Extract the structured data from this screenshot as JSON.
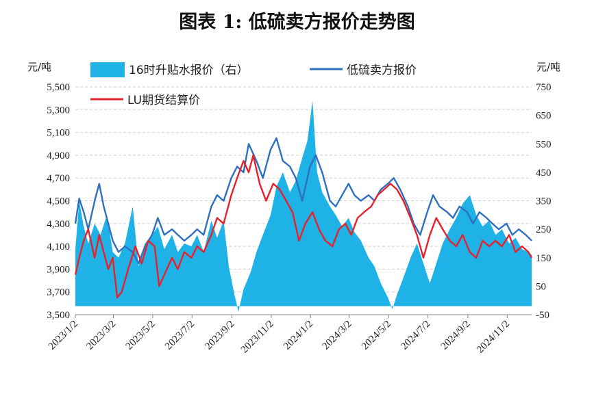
{
  "title": "图表 1:  低硫卖方报价走势图",
  "chart_data": {
    "type": "line",
    "left_unit": "元/吨",
    "right_unit": "元/吨",
    "left_axis": {
      "min": 3500,
      "max": 5500,
      "ticks": [
        3500,
        3700,
        3900,
        4100,
        4300,
        4500,
        4700,
        4900,
        5100,
        5300,
        5500
      ]
    },
    "right_axis": {
      "min": -50,
      "max": 750,
      "ticks": [
        -50,
        50,
        150,
        250,
        350,
        450,
        550,
        650,
        750
      ]
    },
    "x_ticks": [
      "2023/1/2",
      "2023/3/2",
      "2023/5/2",
      "2023/7/2",
      "2023/9/2",
      "2023/11/2",
      "2024/1/2",
      "2024/3/2",
      "2024/5/2",
      "2024/7/2",
      "2024/9/2",
      "2024/11/2"
    ],
    "x_range": [
      "2023/1/2",
      "2024/12/10"
    ],
    "grid": "horizontal dashed",
    "legend_position": "top",
    "series": [
      {
        "name": "16时升贴水报价（右）",
        "kind": "area",
        "axis": "right",
        "color": "#1fb2e6",
        "points": [
          [
            "2023-01-02",
            180
          ],
          [
            "2023-01-08",
            350
          ],
          [
            "2023-01-15",
            260
          ],
          [
            "2023-01-22",
            200
          ],
          [
            "2023-02-01",
            270
          ],
          [
            "2023-02-10",
            230
          ],
          [
            "2023-02-20",
            300
          ],
          [
            "2023-03-01",
            170
          ],
          [
            "2023-03-10",
            150
          ],
          [
            "2023-03-20",
            200
          ],
          [
            "2023-04-01",
            330
          ],
          [
            "2023-04-10",
            120
          ],
          [
            "2023-04-20",
            200
          ],
          [
            "2023-05-01",
            230
          ],
          [
            "2023-05-10",
            260
          ],
          [
            "2023-05-20",
            180
          ],
          [
            "2023-06-01",
            230
          ],
          [
            "2023-06-10",
            170
          ],
          [
            "2023-06-20",
            200
          ],
          [
            "2023-07-01",
            190
          ],
          [
            "2023-07-10",
            230
          ],
          [
            "2023-07-20",
            170
          ],
          [
            "2023-08-01",
            280
          ],
          [
            "2023-08-10",
            220
          ],
          [
            "2023-08-20",
            280
          ],
          [
            "2023-08-28",
            120
          ],
          [
            "2023-09-05",
            30
          ],
          [
            "2023-09-12",
            -40
          ],
          [
            "2023-09-20",
            40
          ],
          [
            "2023-10-01",
            100
          ],
          [
            "2023-10-10",
            170
          ],
          [
            "2023-10-20",
            230
          ],
          [
            "2023-11-01",
            300
          ],
          [
            "2023-11-10",
            400
          ],
          [
            "2023-11-20",
            450
          ],
          [
            "2023-12-01",
            380
          ],
          [
            "2023-12-10",
            420
          ],
          [
            "2023-12-20",
            500
          ],
          [
            "2023-12-28",
            560
          ],
          [
            "2024-01-05",
            700
          ],
          [
            "2024-01-12",
            450
          ],
          [
            "2024-01-20",
            380
          ],
          [
            "2024-02-01",
            330
          ],
          [
            "2024-02-10",
            300
          ],
          [
            "2024-02-20",
            260
          ],
          [
            "2024-03-01",
            290
          ],
          [
            "2024-03-10",
            240
          ],
          [
            "2024-03-20",
            210
          ],
          [
            "2024-04-01",
            150
          ],
          [
            "2024-04-10",
            120
          ],
          [
            "2024-04-20",
            60
          ],
          [
            "2024-05-01",
            10
          ],
          [
            "2024-05-08",
            -30
          ],
          [
            "2024-05-15",
            20
          ],
          [
            "2024-05-25",
            80
          ],
          [
            "2024-06-05",
            150
          ],
          [
            "2024-06-15",
            200
          ],
          [
            "2024-06-25",
            130
          ],
          [
            "2024-07-05",
            60
          ],
          [
            "2024-07-15",
            130
          ],
          [
            "2024-07-25",
            200
          ],
          [
            "2024-08-05",
            250
          ],
          [
            "2024-08-15",
            290
          ],
          [
            "2024-08-25",
            340
          ],
          [
            "2024-09-05",
            370
          ],
          [
            "2024-09-15",
            300
          ],
          [
            "2024-09-25",
            260
          ],
          [
            "2024-10-05",
            280
          ],
          [
            "2024-10-15",
            230
          ],
          [
            "2024-10-25",
            250
          ],
          [
            "2024-11-05",
            200
          ],
          [
            "2024-11-15",
            220
          ],
          [
            "2024-11-25",
            180
          ],
          [
            "2024-12-05",
            170
          ],
          [
            "2024-12-10",
            160
          ]
        ]
      },
      {
        "name": "低硫卖方报价",
        "kind": "line",
        "axis": "left",
        "color": "#2e6fc0",
        "points": [
          [
            "2023-01-02",
            4300
          ],
          [
            "2023-01-08",
            4520
          ],
          [
            "2023-01-15",
            4400
          ],
          [
            "2023-01-22",
            4250
          ],
          [
            "2023-02-01",
            4500
          ],
          [
            "2023-02-08",
            4650
          ],
          [
            "2023-02-15",
            4450
          ],
          [
            "2023-02-22",
            4300
          ],
          [
            "2023-03-01",
            4150
          ],
          [
            "2023-03-10",
            4050
          ],
          [
            "2023-03-20",
            4100
          ],
          [
            "2023-04-01",
            4050
          ],
          [
            "2023-04-10",
            3950
          ],
          [
            "2023-04-20",
            4100
          ],
          [
            "2023-05-01",
            4200
          ],
          [
            "2023-05-10",
            4350
          ],
          [
            "2023-05-20",
            4200
          ],
          [
            "2023-06-01",
            4250
          ],
          [
            "2023-06-10",
            4200
          ],
          [
            "2023-06-20",
            4150
          ],
          [
            "2023-07-01",
            4200
          ],
          [
            "2023-07-10",
            4250
          ],
          [
            "2023-07-20",
            4200
          ],
          [
            "2023-08-01",
            4450
          ],
          [
            "2023-08-10",
            4550
          ],
          [
            "2023-08-20",
            4500
          ],
          [
            "2023-09-01",
            4700
          ],
          [
            "2023-09-10",
            4800
          ],
          [
            "2023-09-20",
            4750
          ],
          [
            "2023-09-28",
            5000
          ],
          [
            "2023-10-10",
            4850
          ],
          [
            "2023-10-20",
            4700
          ],
          [
            "2023-11-01",
            4950
          ],
          [
            "2023-11-10",
            5050
          ],
          [
            "2023-11-20",
            4850
          ],
          [
            "2023-12-01",
            4800
          ],
          [
            "2023-12-10",
            4700
          ],
          [
            "2023-12-20",
            4500
          ],
          [
            "2024-01-01",
            4800
          ],
          [
            "2024-01-10",
            4900
          ],
          [
            "2024-01-20",
            4750
          ],
          [
            "2024-02-01",
            4500
          ],
          [
            "2024-02-10",
            4450
          ],
          [
            "2024-02-20",
            4550
          ],
          [
            "2024-03-01",
            4650
          ],
          [
            "2024-03-10",
            4550
          ],
          [
            "2024-03-20",
            4500
          ],
          [
            "2024-04-01",
            4550
          ],
          [
            "2024-04-10",
            4500
          ],
          [
            "2024-04-20",
            4600
          ],
          [
            "2024-05-01",
            4650
          ],
          [
            "2024-05-10",
            4700
          ],
          [
            "2024-05-20",
            4600
          ],
          [
            "2024-06-01",
            4450
          ],
          [
            "2024-06-10",
            4300
          ],
          [
            "2024-06-20",
            4200
          ],
          [
            "2024-07-01",
            4400
          ],
          [
            "2024-07-10",
            4550
          ],
          [
            "2024-07-20",
            4450
          ],
          [
            "2024-08-01",
            4400
          ],
          [
            "2024-08-10",
            4350
          ],
          [
            "2024-08-20",
            4450
          ],
          [
            "2024-09-01",
            4400
          ],
          [
            "2024-09-10",
            4300
          ],
          [
            "2024-09-20",
            4400
          ],
          [
            "2024-10-01",
            4350
          ],
          [
            "2024-10-10",
            4300
          ],
          [
            "2024-10-20",
            4250
          ],
          [
            "2024-11-01",
            4300
          ],
          [
            "2024-11-10",
            4200
          ],
          [
            "2024-11-20",
            4250
          ],
          [
            "2024-12-01",
            4200
          ],
          [
            "2024-12-10",
            4150
          ]
        ]
      },
      {
        "name": "LU期货结算价",
        "kind": "line",
        "axis": "left",
        "color": "#e8202a",
        "points": [
          [
            "2023-01-02",
            3850
          ],
          [
            "2023-01-08",
            4000
          ],
          [
            "2023-01-15",
            4150
          ],
          [
            "2023-01-22",
            4250
          ],
          [
            "2023-02-01",
            4000
          ],
          [
            "2023-02-08",
            4200
          ],
          [
            "2023-02-15",
            4050
          ],
          [
            "2023-02-22",
            3900
          ],
          [
            "2023-03-01",
            4000
          ],
          [
            "2023-03-08",
            3650
          ],
          [
            "2023-03-15",
            3700
          ],
          [
            "2023-03-25",
            3900
          ],
          [
            "2023-04-05",
            4100
          ],
          [
            "2023-04-15",
            3950
          ],
          [
            "2023-04-25",
            4150
          ],
          [
            "2023-05-05",
            4100
          ],
          [
            "2023-05-12",
            3750
          ],
          [
            "2023-05-20",
            3850
          ],
          [
            "2023-06-01",
            4000
          ],
          [
            "2023-06-10",
            3900
          ],
          [
            "2023-06-20",
            4050
          ],
          [
            "2023-07-01",
            4000
          ],
          [
            "2023-07-10",
            4100
          ],
          [
            "2023-07-20",
            4050
          ],
          [
            "2023-08-01",
            4200
          ],
          [
            "2023-08-10",
            4350
          ],
          [
            "2023-08-20",
            4300
          ],
          [
            "2023-09-01",
            4550
          ],
          [
            "2023-09-10",
            4700
          ],
          [
            "2023-09-20",
            4850
          ],
          [
            "2023-09-28",
            4750
          ],
          [
            "2023-10-05",
            4900
          ],
          [
            "2023-10-15",
            4650
          ],
          [
            "2023-10-25",
            4500
          ],
          [
            "2023-11-05",
            4650
          ],
          [
            "2023-11-15",
            4600
          ],
          [
            "2023-11-25",
            4500
          ],
          [
            "2023-12-05",
            4400
          ],
          [
            "2023-12-15",
            4150
          ],
          [
            "2023-12-25",
            4300
          ],
          [
            "2024-01-05",
            4400
          ],
          [
            "2024-01-15",
            4250
          ],
          [
            "2024-01-25",
            4150
          ],
          [
            "2024-02-05",
            4100
          ],
          [
            "2024-02-15",
            4250
          ],
          [
            "2024-02-25",
            4300
          ],
          [
            "2024-03-05",
            4200
          ],
          [
            "2024-03-15",
            4350
          ],
          [
            "2024-03-25",
            4400
          ],
          [
            "2024-04-05",
            4450
          ],
          [
            "2024-04-15",
            4550
          ],
          [
            "2024-04-25",
            4600
          ],
          [
            "2024-05-05",
            4650
          ],
          [
            "2024-05-15",
            4600
          ],
          [
            "2024-05-25",
            4500
          ],
          [
            "2024-06-05",
            4350
          ],
          [
            "2024-06-15",
            4200
          ],
          [
            "2024-06-25",
            4000
          ],
          [
            "2024-07-05",
            4200
          ],
          [
            "2024-07-15",
            4350
          ],
          [
            "2024-07-25",
            4250
          ],
          [
            "2024-08-05",
            4150
          ],
          [
            "2024-08-15",
            4100
          ],
          [
            "2024-08-25",
            4200
          ],
          [
            "2024-09-05",
            4050
          ],
          [
            "2024-09-15",
            4000
          ],
          [
            "2024-09-25",
            4150
          ],
          [
            "2024-10-05",
            4100
          ],
          [
            "2024-10-15",
            4150
          ],
          [
            "2024-10-25",
            4100
          ],
          [
            "2024-11-05",
            4200
          ],
          [
            "2024-11-15",
            4050
          ],
          [
            "2024-11-25",
            4100
          ],
          [
            "2024-12-05",
            4050
          ],
          [
            "2024-12-10",
            4000
          ]
        ]
      }
    ]
  }
}
